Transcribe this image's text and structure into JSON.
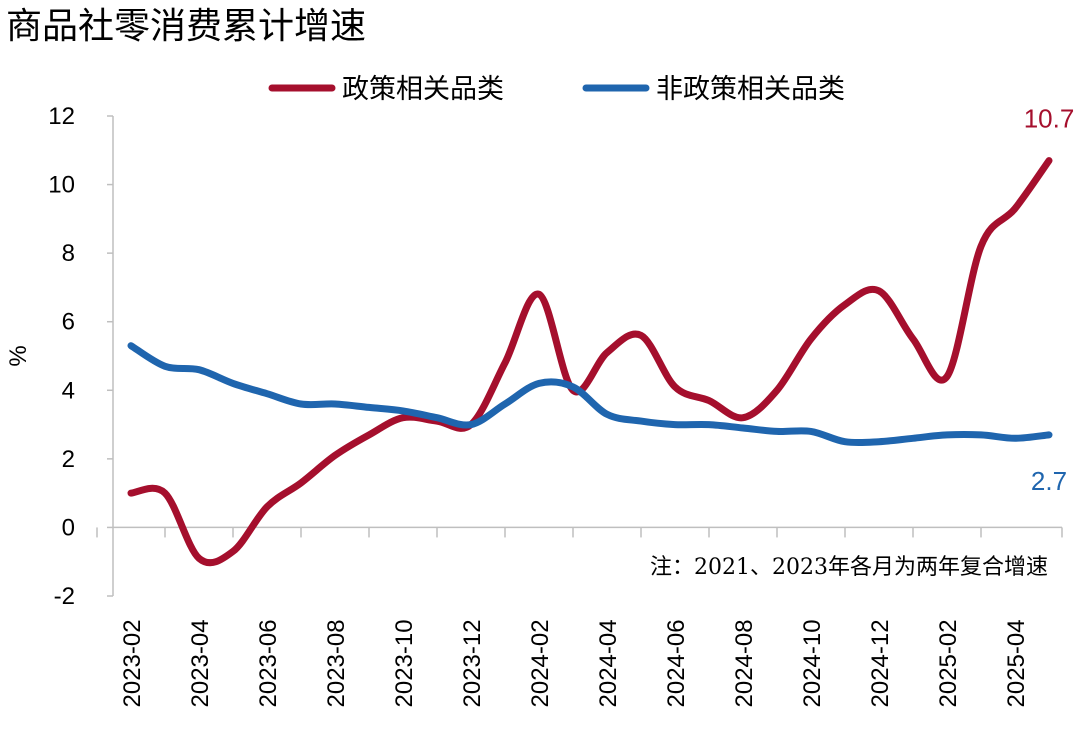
{
  "chart_data": {
    "type": "line",
    "title": "商品社零消费累计增速",
    "ylabel": "%",
    "xlabel": "",
    "ylim": [
      -2,
      12
    ],
    "yticks": [
      -2,
      0,
      2,
      4,
      6,
      8,
      10,
      12
    ],
    "x": [
      "2023-02",
      "2023-03",
      "2023-04",
      "2023-05",
      "2023-06",
      "2023-07",
      "2023-08",
      "2023-09",
      "2023-10",
      "2023-11",
      "2023-12",
      "2024-01",
      "2024-02",
      "2024-03",
      "2024-04",
      "2024-05",
      "2024-06",
      "2024-07",
      "2024-08",
      "2024-09",
      "2024-10",
      "2024-11",
      "2024-12",
      "2025-01",
      "2025-02",
      "2025-03",
      "2025-04",
      "2025-05"
    ],
    "xticks": [
      "2023-02",
      "2023-04",
      "2023-06",
      "2023-08",
      "2023-10",
      "2023-12",
      "2024-02",
      "2024-04",
      "2024-06",
      "2024-08",
      "2024-10",
      "2024-12",
      "2025-02",
      "2025-04"
    ],
    "series": [
      {
        "name": "政策相关品类",
        "color": "#A50F2D",
        "values": [
          1.0,
          1.0,
          -0.9,
          -0.7,
          0.6,
          1.3,
          2.1,
          2.7,
          3.2,
          3.1,
          3.0,
          4.8,
          6.8,
          4.0,
          5.1,
          5.6,
          4.1,
          3.7,
          3.2,
          4.0,
          5.5,
          6.5,
          6.9,
          5.5,
          4.4,
          8.2,
          9.3,
          10.7
        ],
        "end_label": "10.7"
      },
      {
        "name": "非政策相关品类",
        "color": "#1F65AE",
        "values": [
          5.3,
          4.7,
          4.6,
          4.2,
          3.9,
          3.6,
          3.6,
          3.5,
          3.4,
          3.2,
          3.0,
          3.6,
          4.2,
          4.1,
          3.3,
          3.1,
          3.0,
          3.0,
          2.9,
          2.8,
          2.8,
          2.5,
          2.5,
          2.6,
          2.7,
          2.7,
          2.6,
          2.7
        ],
        "end_label": "2.7"
      }
    ],
    "legend_position": "top",
    "grid": false,
    "note": "注：2021、2023年各月为两年复合增速"
  }
}
